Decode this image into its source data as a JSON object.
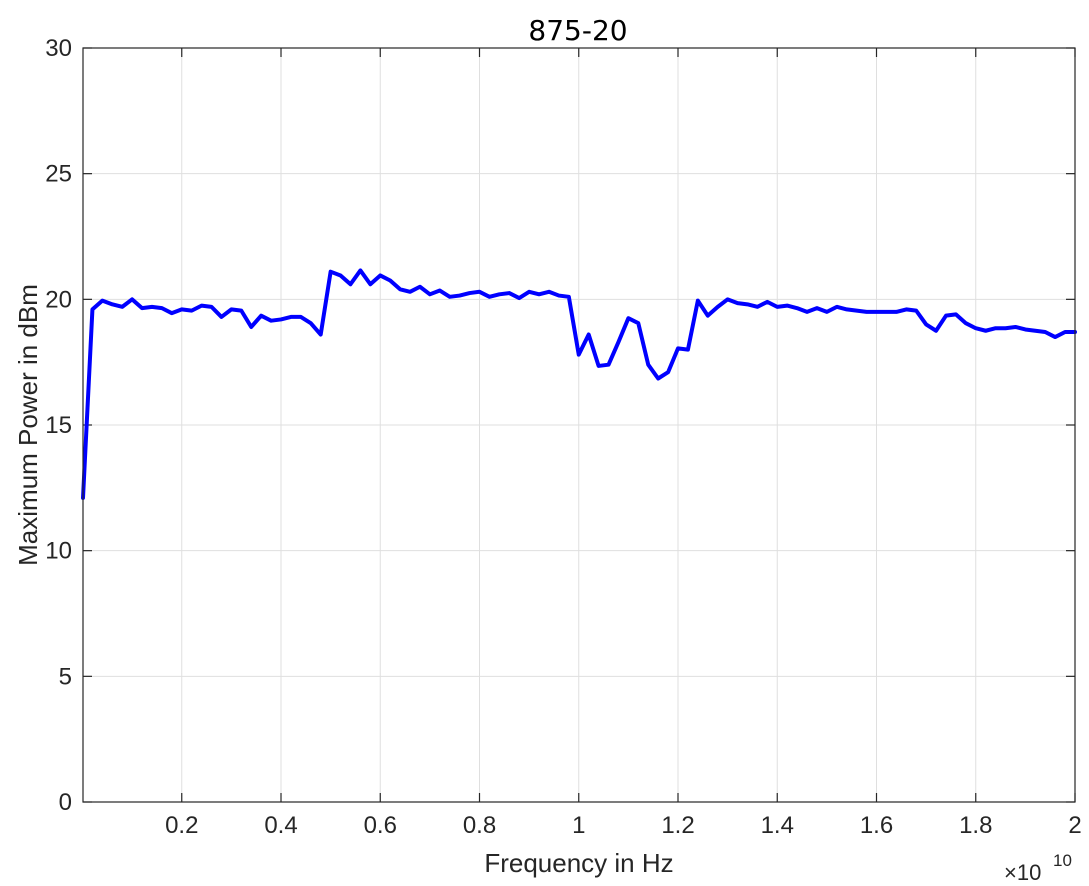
{
  "chart_data": {
    "type": "line",
    "title": "875-20",
    "xlabel": "Frequency in Hz",
    "ylabel": "Maximum Power in dBm",
    "x_exponent_label": "×10",
    "x_exponent_power": "10",
    "xlim": [
      10000000,
      20000000000
    ],
    "ylim": [
      0,
      30
    ],
    "grid": true,
    "x_ticks": [
      2000000000,
      4000000000,
      6000000000,
      8000000000,
      10000000000,
      12000000000,
      14000000000,
      16000000000,
      18000000000,
      20000000000
    ],
    "x_tick_labels": [
      "0.2",
      "0.4",
      "0.6",
      "0.8",
      "1",
      "1.2",
      "1.4",
      "1.6",
      "1.8",
      "2"
    ],
    "y_ticks": [
      0,
      5,
      10,
      15,
      20,
      25,
      30
    ],
    "y_tick_labels": [
      "0",
      "5",
      "10",
      "15",
      "20",
      "25",
      "30"
    ],
    "series": [
      {
        "color": "#0000ff",
        "x": [
          10000000,
          200000000,
          400000000,
          600000000,
          800000000,
          1000000000,
          1200000000,
          1400000000,
          1600000000,
          1800000000,
          2000000000,
          2200000000,
          2400000000,
          2600000000,
          2800000000,
          3000000000,
          3200000000,
          3400000000,
          3600000000,
          3800000000,
          4000000000,
          4200000000,
          4400000000,
          4600000000,
          4800000000,
          5000000000,
          5200000000,
          5400000000,
          5600000000,
          5800000000,
          6000000000,
          6200000000,
          6400000000,
          6600000000,
          6800000000,
          7000000000,
          7200000000,
          7400000000,
          7600000000,
          7800000000,
          8000000000,
          8200000000,
          8400000000,
          8600000000,
          8800000000,
          9000000000,
          9200000000,
          9400000000,
          9600000000,
          9800000000,
          10000000000,
          10200000000,
          10400000000,
          10600000000,
          10800000000,
          11000000000,
          11200000000,
          11400000000,
          11600000000,
          11800000000,
          12000000000,
          12200000000,
          12400000000,
          12600000000,
          12800000000,
          13000000000,
          13200000000,
          13400000000,
          13600000000,
          13800000000,
          14000000000,
          14200000000,
          14400000000,
          14600000000,
          14800000000,
          15000000000,
          15200000000,
          15400000000,
          15600000000,
          15800000000,
          16000000000,
          16200000000,
          16400000000,
          16600000000,
          16800000000,
          17000000000,
          17200000000,
          17400000000,
          17600000000,
          17800000000,
          18000000000,
          18200000000,
          18400000000,
          18600000000,
          18800000000,
          19000000000,
          19200000000,
          19400000000,
          19600000000,
          19800000000,
          20000000000
        ],
        "y": [
          12.1,
          19.6,
          19.95,
          19.8,
          19.7,
          20.0,
          19.65,
          19.7,
          19.65,
          19.45,
          19.6,
          19.55,
          19.75,
          19.7,
          19.3,
          19.6,
          19.55,
          18.9,
          19.35,
          19.15,
          19.2,
          19.3,
          19.3,
          19.05,
          18.6,
          21.1,
          20.95,
          20.6,
          21.15,
          20.6,
          20.95,
          20.75,
          20.4,
          20.3,
          20.5,
          20.2,
          20.35,
          20.1,
          20.15,
          20.25,
          20.3,
          20.1,
          20.2,
          20.25,
          20.05,
          20.3,
          20.2,
          20.3,
          20.15,
          20.1,
          17.8,
          18.6,
          17.35,
          17.4,
          18.3,
          19.25,
          19.05,
          17.4,
          16.85,
          17.1,
          18.05,
          18.0,
          19.95,
          19.35,
          19.7,
          20.0,
          19.85,
          19.8,
          19.7,
          19.9,
          19.7,
          19.75,
          19.65,
          19.5,
          19.65,
          19.5,
          19.7,
          19.6,
          19.55,
          19.5,
          19.5,
          19.5,
          19.5,
          19.6,
          19.55,
          19.0,
          18.75,
          19.35,
          19.4,
          19.05,
          18.85,
          18.75,
          18.85,
          18.85,
          18.9,
          18.8,
          18.75,
          18.7,
          18.5,
          18.7,
          18.7
        ]
      }
    ]
  }
}
